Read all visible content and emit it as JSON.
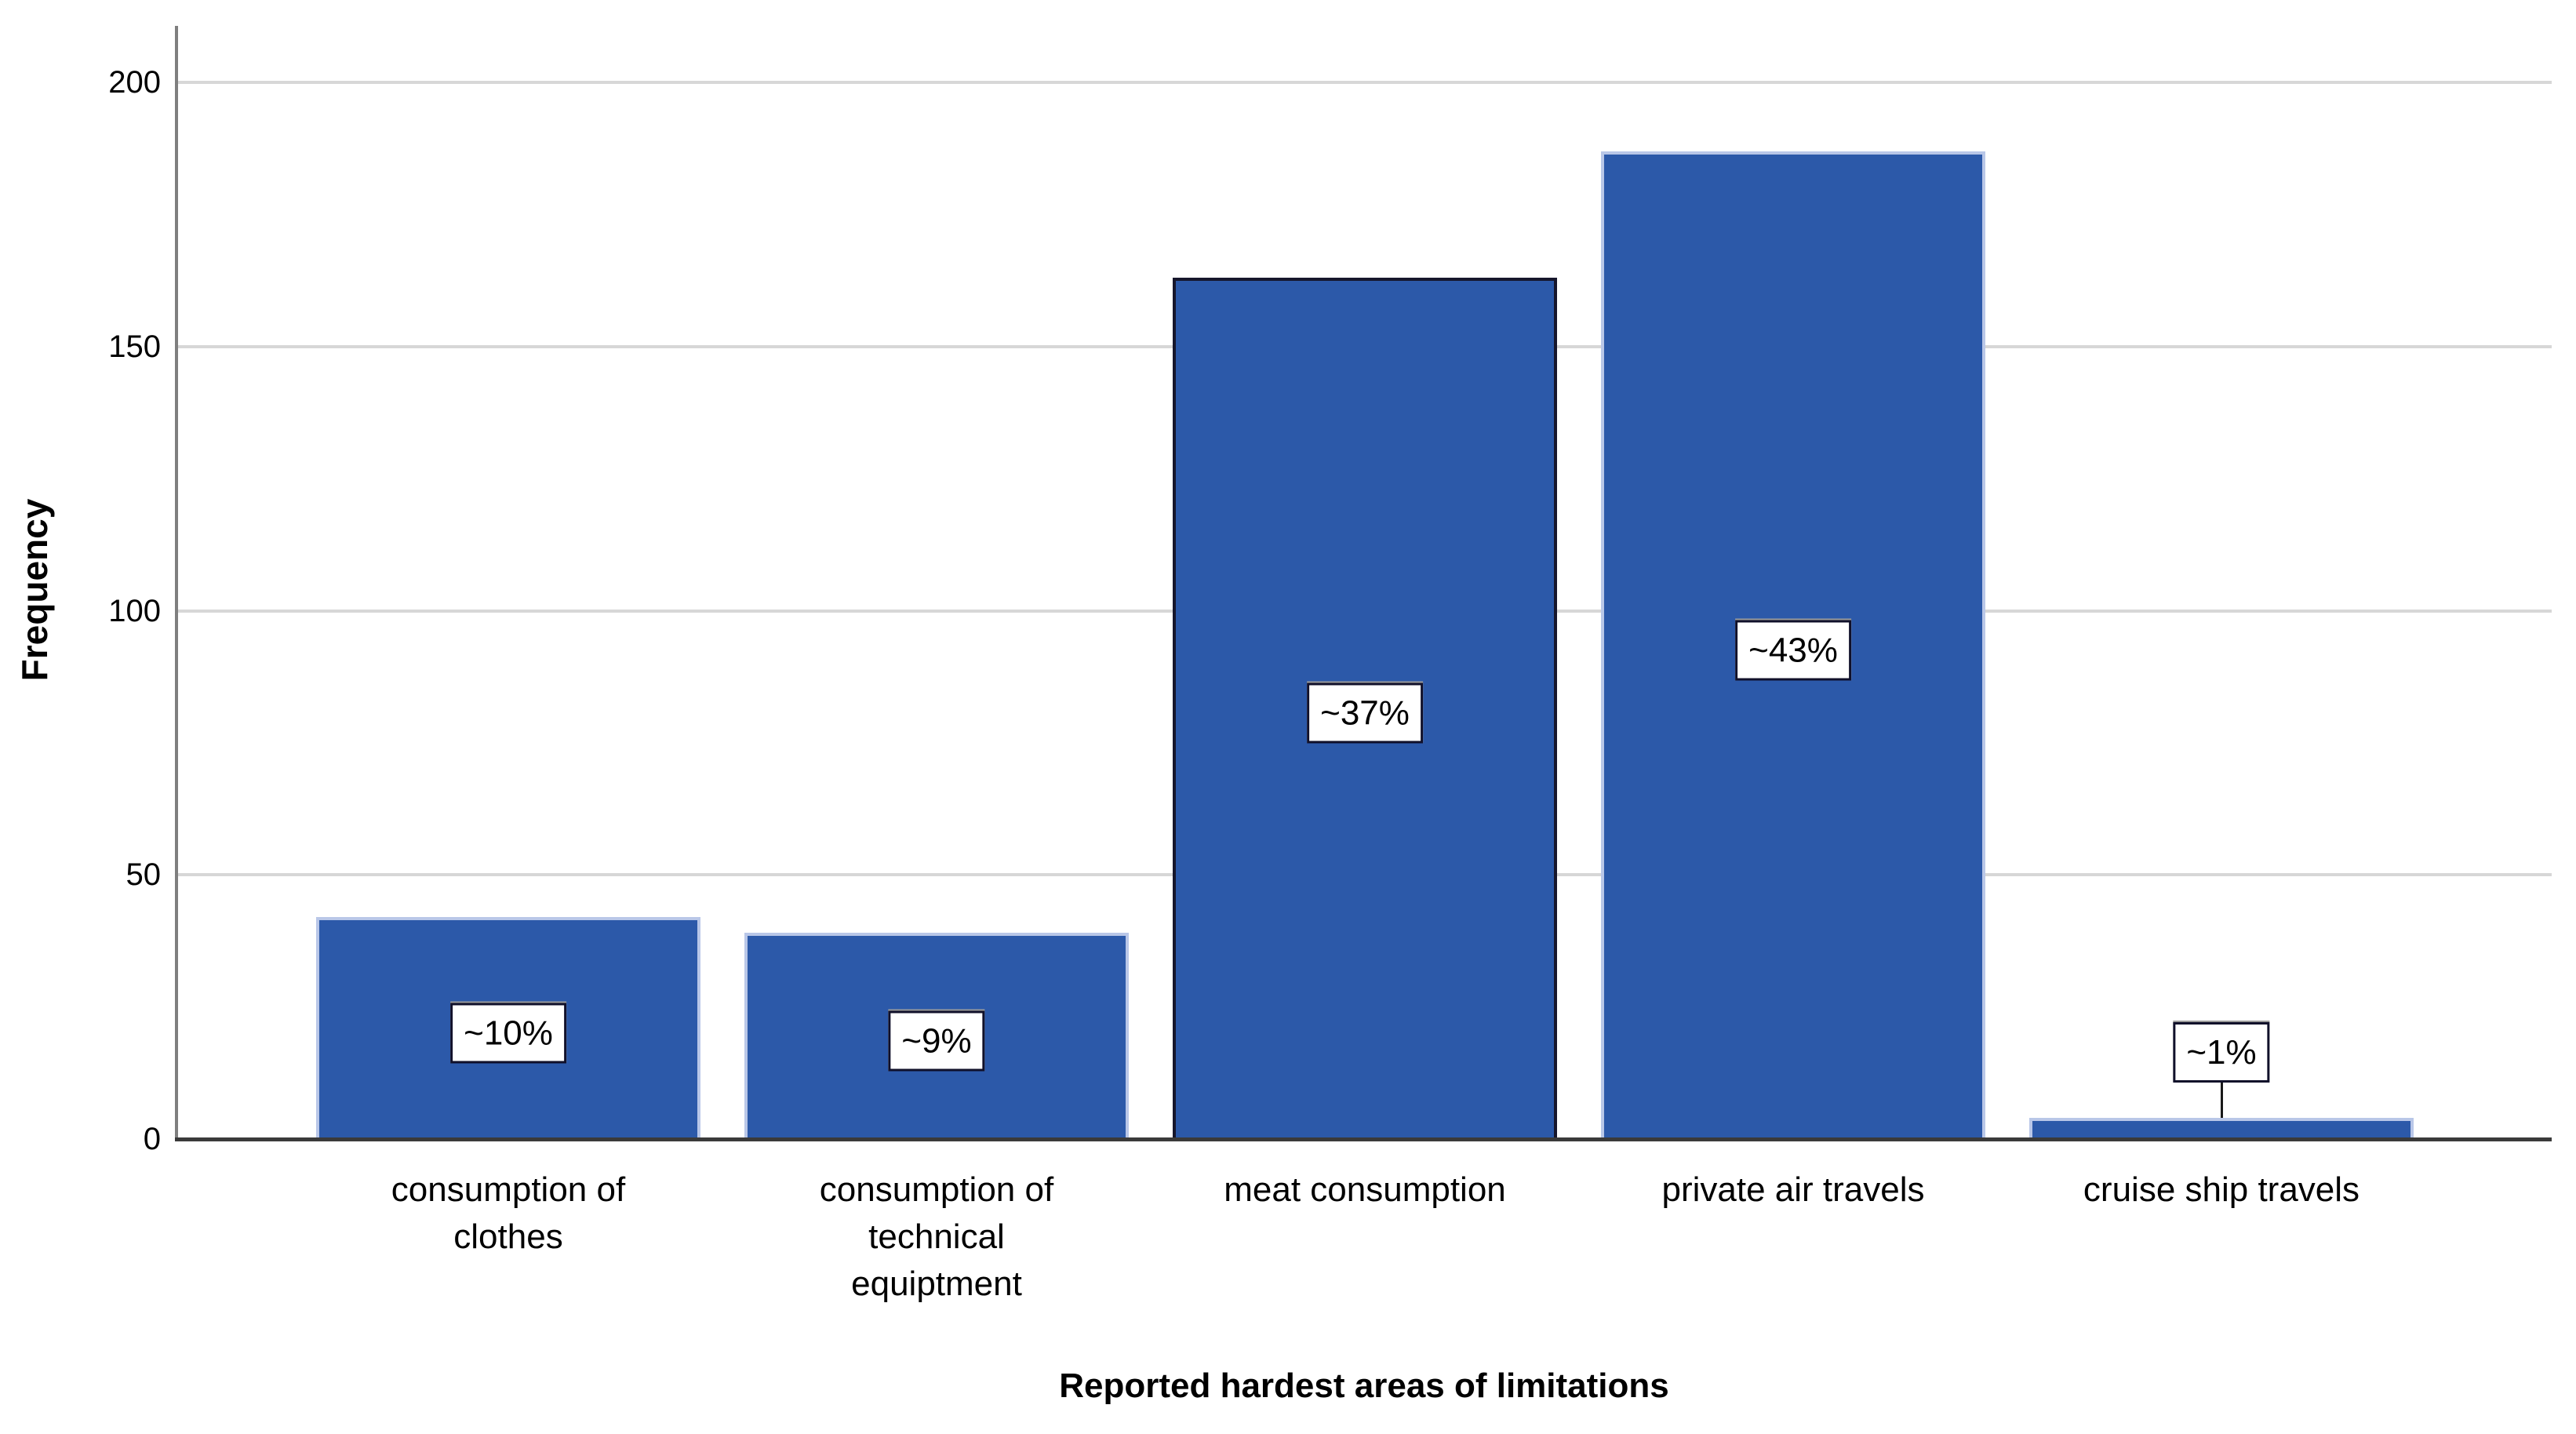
{
  "chart_data": {
    "type": "bar",
    "title": "",
    "xlabel": "Reported hardest areas of limitations",
    "ylabel": "Frequency",
    "categories": [
      "consumption of clothes",
      "consumption of technical equiptment",
      "meat consumption",
      "private air travels",
      "cruise ship travels"
    ],
    "category_lines": [
      [
        "consumption of",
        "clothes"
      ],
      [
        "consumption of",
        "technical",
        "equiptment"
      ],
      [
        "meat consumption"
      ],
      [
        "private air travels"
      ],
      [
        "cruise ship travels"
      ]
    ],
    "values": [
      42,
      39,
      163,
      187,
      4
    ],
    "bar_labels": [
      "~10%",
      "~9%",
      "~37%",
      "~43%",
      "~1%"
    ],
    "yticks": [
      0,
      50,
      100,
      150,
      200
    ],
    "ylim": [
      0,
      200
    ],
    "grid": "horizontal",
    "legend": "none",
    "highlighted_bar_index": 2,
    "colors": {
      "bar_fill": "#2c59a9",
      "bar_edge_light": "#b9c7e8",
      "bar_edge_dark": "#16162c",
      "gridline": "#d7d7d7",
      "y_axis": "#7f7f7f",
      "x_axis": "#3a3a3a",
      "label_box_bg": "#ffffff",
      "label_box_border": "#10102a",
      "text": "#000000",
      "background": "#ffffff"
    }
  }
}
